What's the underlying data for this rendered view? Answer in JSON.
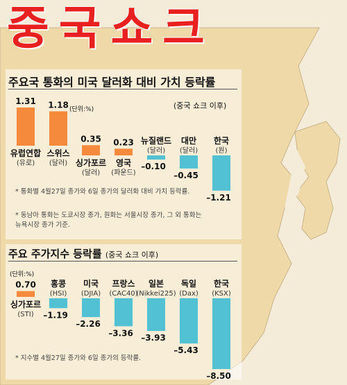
{
  "headline": "중국쇼크",
  "section1": {
    "title": "주요국 통화의 미국 달러화 대비 가치 등락률",
    "subtitle": "(중국 쇼크 이후)",
    "unit_label": "(단위:%)",
    "notes": [
      "* 통화별 4월27일 종가와 6일 종가의 달러화 대비 가치 등락률.",
      "* 동남아 통화는 도쿄시장 종가, 원화는 서울시장 종가, 그 외 통화는 뉴욕시장 종가 기준."
    ]
  },
  "section2": {
    "title": "주요 주가지수 등락률",
    "subtitle": "(중국 쇼크 이후)",
    "unit_label": "(단위:%)",
    "notes": [
      "* 지수별 4월27일 종가와 6일 종가의 등락률."
    ]
  },
  "colors": {
    "up": "#f58a3d",
    "down": "#52c1d3",
    "headline": "#e8201f",
    "map_land": "#efd9a8"
  },
  "chart_data": [
    {
      "type": "bar",
      "title": "주요국 통화의 미국 달러화 대비 가치 등락률",
      "subtitle": "(중국 쇼크 이후)",
      "unit": "(단위:%)",
      "categories": [
        "유럽연합",
        "스위스",
        "싱가포르",
        "영국",
        "뉴질랜드",
        "대만",
        "한국"
      ],
      "sublabels": [
        "(유로)",
        "(달러)",
        "(달러)",
        "(파운드)",
        "(달러)",
        "(달러)",
        "(원)"
      ],
      "values": [
        1.31,
        1.18,
        0.35,
        0.23,
        -0.1,
        -0.45,
        -1.21
      ],
      "value_labels": [
        "1.31",
        "1.18",
        "0.35",
        "0.23",
        "–0.10",
        "–0.45",
        "–1.21"
      ]
    },
    {
      "type": "bar",
      "title": "주요 주가지수 등락률",
      "subtitle": "(중국 쇼크 이후)",
      "unit": "(단위:%)",
      "categories": [
        "싱가포르",
        "홍콩",
        "미국",
        "프랑스",
        "일본",
        "독일",
        "한국"
      ],
      "sublabels": [
        "(STI)",
        "(HSI)",
        "(DJIA)",
        "(CAC40)",
        "(Nikkei225)",
        "(Dax)",
        "(KSX)"
      ],
      "values": [
        0.7,
        -1.19,
        -2.26,
        -3.36,
        -3.93,
        -5.43,
        -8.5
      ],
      "value_labels": [
        "0.70",
        "–1.19",
        "–2.26",
        "–3.36",
        "–3.93",
        "–5.43",
        "–8.50"
      ]
    }
  ]
}
